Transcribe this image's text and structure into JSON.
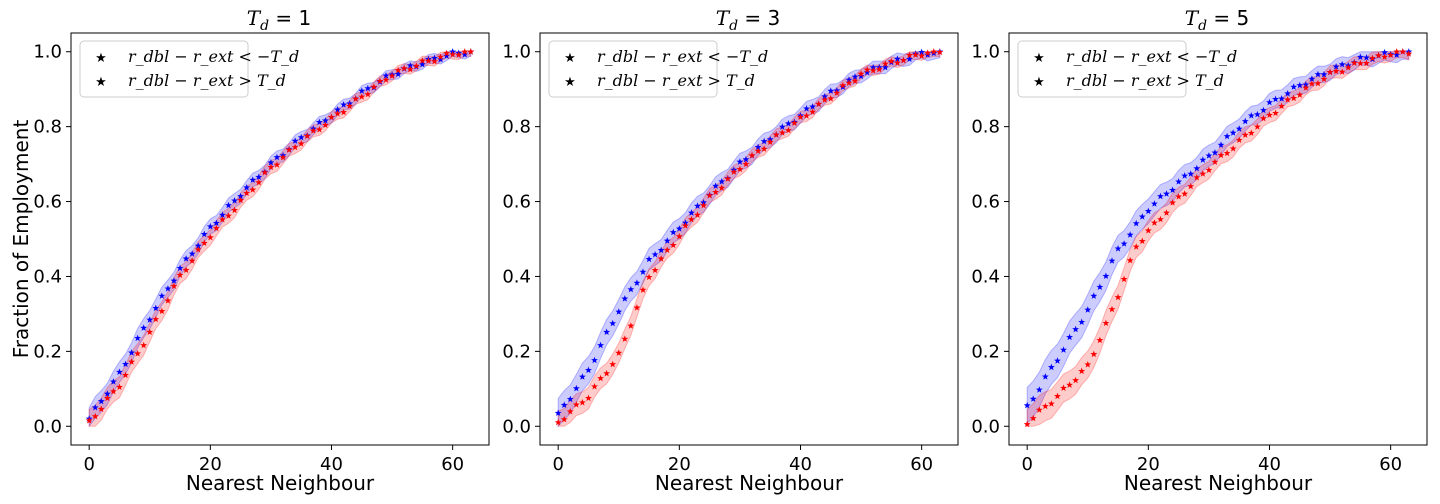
{
  "figure": {
    "ylabel": "Fraction of Employment",
    "xlabel": "Nearest Neighbour"
  },
  "colors": {
    "neg_series": "#0000ff",
    "pos_series": "#ff0000",
    "neg_band": "#0000ff",
    "pos_band": "#ff0000"
  },
  "chart_data": [
    {
      "type": "scatter",
      "title": "T_d = 1",
      "title_main": "T",
      "title_sub": "d",
      "title_rest": " = 1",
      "xlabel": "Nearest Neighbour",
      "ylabel": "Fraction of Employment",
      "xlim": [
        -3,
        66
      ],
      "ylim": [
        -0.05,
        1.05
      ],
      "xticks": [
        0,
        20,
        40,
        60
      ],
      "yticks": [
        0.0,
        0.2,
        0.4,
        0.6,
        0.8,
        1.0
      ],
      "ytick_labels": [
        "0.0",
        "0.2",
        "0.4",
        "0.6",
        "0.8",
        "1.0"
      ],
      "legend": [
        "r_dbl − r_ext < −T_d",
        "r_dbl − r_ext > T_d"
      ],
      "series": [
        {
          "name": "r_dbl − r_ext < −T_d",
          "color": "blue",
          "anchors_x": [
            0,
            5,
            10,
            15,
            20,
            25,
            30,
            35,
            40,
            45,
            50,
            55,
            60,
            63
          ],
          "anchors_y": [
            0.02,
            0.14,
            0.29,
            0.42,
            0.53,
            0.62,
            0.7,
            0.77,
            0.83,
            0.89,
            0.94,
            0.97,
            0.995,
            1.0
          ],
          "band": 0.03
        },
        {
          "name": "r_dbl − r_ext > T_d",
          "color": "red",
          "anchors_x": [
            0,
            5,
            10,
            15,
            20,
            25,
            30,
            35,
            40,
            45,
            50,
            55,
            60,
            63
          ],
          "anchors_y": [
            0.01,
            0.11,
            0.25,
            0.4,
            0.51,
            0.6,
            0.69,
            0.76,
            0.82,
            0.88,
            0.94,
            0.97,
            0.995,
            1.0
          ],
          "band": 0.03
        }
      ]
    },
    {
      "type": "scatter",
      "title": "T_d = 3",
      "title_main": "T",
      "title_sub": "d",
      "title_rest": " = 3",
      "xlabel": "Nearest Neighbour",
      "ylabel": "",
      "xlim": [
        -3,
        66
      ],
      "ylim": [
        -0.05,
        1.05
      ],
      "xticks": [
        0,
        20,
        40,
        60
      ],
      "yticks": [
        0.0,
        0.2,
        0.4,
        0.6,
        0.8,
        1.0
      ],
      "ytick_labels": [
        "0.0",
        "0.2",
        "0.4",
        "0.6",
        "0.8",
        "1.0"
      ],
      "legend": [
        "r_dbl − r_ext < −T_d",
        "r_dbl − r_ext > T_d"
      ],
      "series": [
        {
          "name": "r_dbl − r_ext < −T_d",
          "color": "blue",
          "anchors_x": [
            0,
            5,
            10,
            15,
            20,
            25,
            30,
            35,
            40,
            45,
            50,
            55,
            60,
            63
          ],
          "anchors_y": [
            0.03,
            0.15,
            0.31,
            0.44,
            0.53,
            0.62,
            0.7,
            0.77,
            0.83,
            0.89,
            0.94,
            0.97,
            0.995,
            1.0
          ],
          "band": 0.04
        },
        {
          "name": "r_dbl − r_ext > T_d",
          "color": "red",
          "anchors_x": [
            0,
            5,
            10,
            15,
            20,
            25,
            30,
            35,
            40,
            45,
            50,
            55,
            60,
            63
          ],
          "anchors_y": [
            0.01,
            0.08,
            0.19,
            0.4,
            0.51,
            0.61,
            0.69,
            0.76,
            0.82,
            0.88,
            0.94,
            0.97,
            0.995,
            1.0
          ],
          "band": 0.03
        }
      ]
    },
    {
      "type": "scatter",
      "title": "T_d = 5",
      "title_main": "T",
      "title_sub": "d",
      "title_rest": " = 5",
      "xlabel": "Nearest Neighbour",
      "ylabel": "",
      "xlim": [
        -3,
        66
      ],
      "ylim": [
        -0.05,
        1.05
      ],
      "xticks": [
        0,
        20,
        40,
        60
      ],
      "yticks": [
        0.0,
        0.2,
        0.4,
        0.6,
        0.8,
        1.0
      ],
      "ytick_labels": [
        "0.0",
        "0.2",
        "0.4",
        "0.6",
        "0.8",
        "1.0"
      ],
      "legend": [
        "r_dbl − r_ext < −T_d",
        "r_dbl − r_ext > T_d"
      ],
      "series": [
        {
          "name": "r_dbl − r_ext < −T_d",
          "color": "blue",
          "anchors_x": [
            0,
            5,
            10,
            15,
            20,
            25,
            30,
            35,
            40,
            45,
            50,
            55,
            60,
            63
          ],
          "anchors_y": [
            0.05,
            0.18,
            0.31,
            0.47,
            0.58,
            0.65,
            0.72,
            0.8,
            0.86,
            0.91,
            0.95,
            0.98,
            0.995,
            1.0
          ],
          "band": 0.05
        },
        {
          "name": "r_dbl − r_ext > T_d",
          "color": "red",
          "anchors_x": [
            0,
            5,
            10,
            13,
            15,
            18,
            20,
            25,
            30,
            35,
            40,
            45,
            50,
            55,
            60,
            63
          ],
          "anchors_y": [
            0.01,
            0.08,
            0.16,
            0.27,
            0.35,
            0.48,
            0.52,
            0.61,
            0.69,
            0.76,
            0.83,
            0.89,
            0.94,
            0.97,
            0.995,
            1.0
          ],
          "band": 0.04
        }
      ]
    }
  ]
}
